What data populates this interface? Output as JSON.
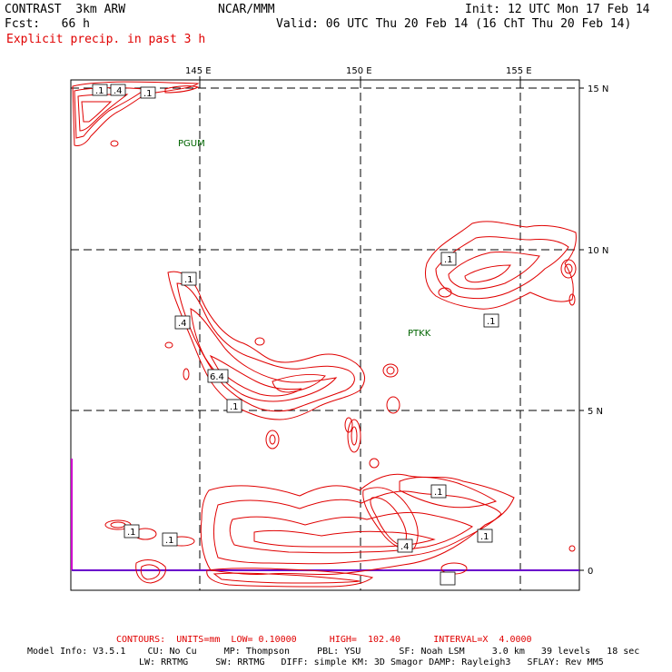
{
  "header": {
    "model": "CONTRAST  3km ARW",
    "org": "NCAR/MMM",
    "init": "Init: 12 UTC Mon 17 Feb 14",
    "fcst": "Fcst:   66 h",
    "valid": "Valid: 06 UTC Thu 20 Feb 14 (16 ChT Thu 20 Feb 14)",
    "field": "Explicit precip. in past 3 h"
  },
  "axes": {
    "longitude_labels": [
      "145 E",
      "150 E",
      "155 E"
    ],
    "latitude_labels": [
      "15 N",
      "10 N",
      "5 N",
      "0"
    ]
  },
  "stations": [
    "PGUM",
    "PTKK"
  ],
  "contour_labels": [
    ".1",
    ".4",
    ".1",
    ".1",
    ".4",
    "6.4",
    ".1",
    ".1",
    ".1",
    ".1",
    ".1",
    ".1",
    ".1",
    ".4"
  ],
  "footer": {
    "contours": "CONTOURS:  UNITS=mm  LOW= 0.10000      HIGH=  102.40      INTERVAL=X  4.0000",
    "model_info_1": "Model Info: V3.5.1    CU: No Cu     MP: Thompson     PBL: YSU       SF: Noah LSM     3.0 km   39 levels   18 sec",
    "model_info_2": "LW: RRTMG     SW: RRTMG   DIFF: simple KM: 3D Smagor DAMP: Rayleigh3   SFLAY: Rev MM5"
  },
  "colors": {
    "contour": "#e00000",
    "station": "#006400",
    "boundary": "#cc00cc",
    "equator": "#6a00cc"
  }
}
